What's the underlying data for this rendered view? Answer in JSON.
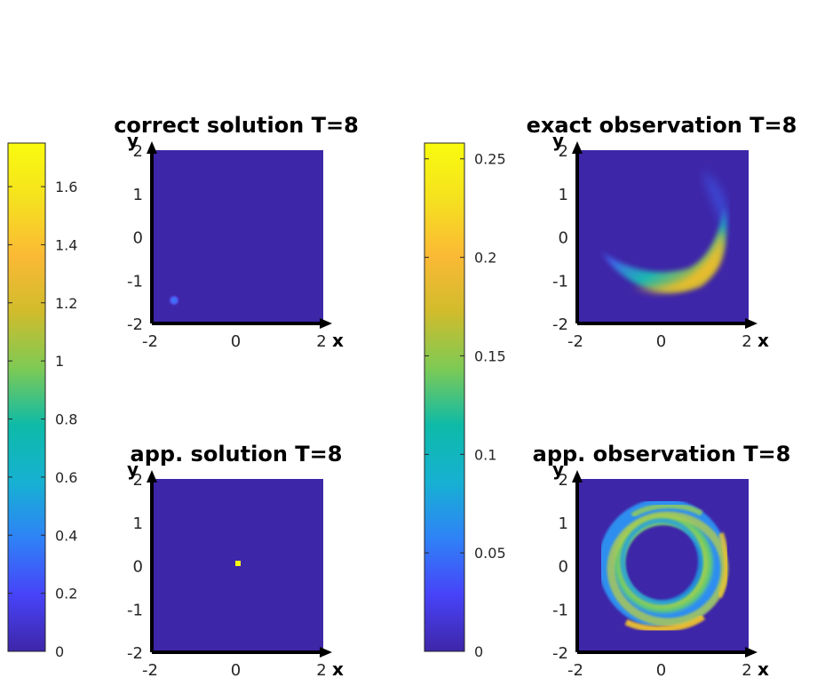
{
  "colormap": [
    "#3e26a8",
    "#4743f8",
    "#2f82f7",
    "#16b1d2",
    "#0dbaa8",
    "#7dca55",
    "#d0bc2c",
    "#fbb935",
    "#f5e11f",
    "#f9fb0e"
  ],
  "chart_data": [
    {
      "type": "heatmap",
      "title": "correct solution T=8",
      "xlabel": "x",
      "ylabel": "y",
      "xlim": [
        -2,
        2
      ],
      "ylim": [
        -2,
        2
      ],
      "xticks": [
        "-2",
        "0",
        "2"
      ],
      "yticks": [
        "2",
        "1",
        "0",
        "-1",
        "-2"
      ],
      "background_value": 0,
      "features": [
        {
          "kind": "spot",
          "center": [
            -1.5,
            -1.5
          ],
          "peak_value": 0.5
        }
      ]
    },
    {
      "type": "heatmap",
      "title": "exact observation T=8",
      "xlabel": "x",
      "ylabel": "y",
      "xlim": [
        -2,
        2
      ],
      "ylim": [
        -2,
        2
      ],
      "xticks": [
        "-2",
        "0",
        "2"
      ],
      "yticks": [
        "2",
        "1",
        "0",
        "-1",
        "-2"
      ],
      "background_value": 0,
      "features": [
        {
          "kind": "crescent",
          "center": [
            0.3,
            -0.2
          ],
          "peak_value": 0.25
        }
      ]
    },
    {
      "type": "heatmap",
      "title": "app. solution T=8",
      "xlabel": "x",
      "ylabel": "y",
      "xlim": [
        -2,
        2
      ],
      "ylim": [
        -2,
        2
      ],
      "xticks": [
        "-2",
        "0",
        "2"
      ],
      "yticks": [
        "2",
        "1",
        "0",
        "-1",
        "-2"
      ],
      "background_value": 0,
      "features": [
        {
          "kind": "point",
          "center": [
            0,
            0
          ],
          "peak_value": 1.75
        }
      ]
    },
    {
      "type": "heatmap",
      "title": "app. observation T=8",
      "xlabel": "x",
      "ylabel": "y",
      "xlim": [
        -2,
        2
      ],
      "ylim": [
        -2,
        2
      ],
      "xticks": [
        "-2",
        "0",
        "2"
      ],
      "yticks": [
        "2",
        "1",
        "0",
        "-1",
        "-2"
      ],
      "background_value": 0,
      "features": [
        {
          "kind": "ring",
          "center": [
            0,
            0
          ],
          "inner_radius": 0.85,
          "outer_radius": 1.45,
          "peak_value": 0.25
        }
      ]
    }
  ],
  "colorbars": [
    {
      "range": [
        0,
        1.75
      ],
      "ticks": [
        "1.6",
        "1.4",
        "1.2",
        "1",
        "0.8",
        "0.6",
        "0.4",
        "0.2",
        "0"
      ],
      "tick_values": [
        1.6,
        1.4,
        1.2,
        1,
        0.8,
        0.6,
        0.4,
        0.2,
        0
      ]
    },
    {
      "range": [
        0,
        0.258
      ],
      "ticks": [
        "0.25",
        "0.2",
        "0.15",
        "0.1",
        "0.05",
        "0"
      ],
      "tick_values": [
        0.25,
        0.2,
        0.15,
        0.1,
        0.05,
        0
      ]
    }
  ]
}
